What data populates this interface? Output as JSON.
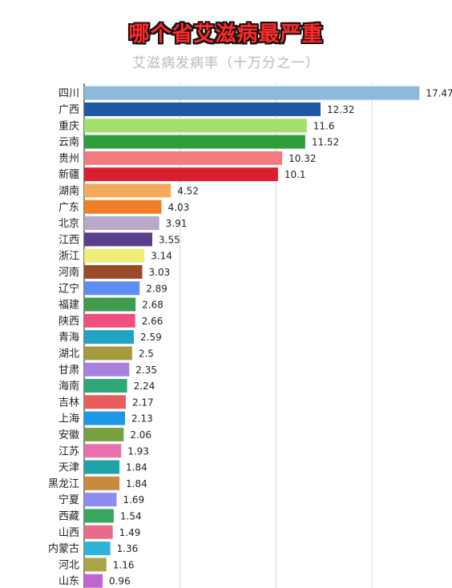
{
  "header": {
    "title": "哪个省艾滋病最严重",
    "subtitle": "艾滋病发病率（十万分之一）"
  },
  "chart_data": {
    "type": "bar",
    "orientation": "horizontal",
    "title": "哪个省艾滋病最严重",
    "subtitle": "艾滋病发病率（十万分之一）",
    "xlim": [
      0,
      18.5
    ],
    "grid": true,
    "categories": [
      "四川",
      "广西",
      "重庆",
      "云南",
      "贵州",
      "新疆",
      "湖南",
      "广东",
      "北京",
      "江西",
      "浙江",
      "河南",
      "辽宁",
      "福建",
      "陕西",
      "青海",
      "湖北",
      "甘肃",
      "海南",
      "吉林",
      "上海",
      "安徽",
      "江苏",
      "天津",
      "黑龙江",
      "宁夏",
      "西藏",
      "山西",
      "内蒙古",
      "河北",
      "山东"
    ],
    "values": [
      17.47,
      12.32,
      11.6,
      11.52,
      10.32,
      10.1,
      4.52,
      4.03,
      3.91,
      3.55,
      3.14,
      3.03,
      2.89,
      2.68,
      2.66,
      2.59,
      2.5,
      2.35,
      2.24,
      2.17,
      2.13,
      2.06,
      1.93,
      1.84,
      1.84,
      1.69,
      1.54,
      1.49,
      1.36,
      1.16,
      0.96
    ],
    "value_labels": [
      "17.47",
      "12.32",
      "11.6",
      "11.52",
      "10.32",
      "10.1",
      "4.52",
      "4.03",
      "3.91",
      "3.55",
      "3.14",
      "3.03",
      "2.89",
      "2.68",
      "2.66",
      "2.59",
      "2.5",
      "2.35",
      "2.24",
      "2.17",
      "2.13",
      "2.06",
      "1.93",
      "1.84",
      "1.84",
      "1.69",
      "1.54",
      "1.49",
      "1.36",
      "1.16",
      "0.96"
    ],
    "colors": [
      "#8db9dd",
      "#1f5aa1",
      "#a3de6e",
      "#2f9e3a",
      "#f07c82",
      "#d91f2d",
      "#f6a95a",
      "#f07f27",
      "#b9a8c6",
      "#5a3f8c",
      "#f0ee7a",
      "#9b4a2a",
      "#5f8df2",
      "#3f9c4f",
      "#ef4f7d",
      "#20a3c4",
      "#a69a3f",
      "#a880e0",
      "#2fa777",
      "#ea5d5d",
      "#1c98e6",
      "#78a040",
      "#e970ad",
      "#1ea3a8",
      "#c88a3c",
      "#8b8bf0",
      "#3ba661",
      "#ea6a8a",
      "#2bb4d8",
      "#a8a648",
      "#c065d0"
    ]
  }
}
